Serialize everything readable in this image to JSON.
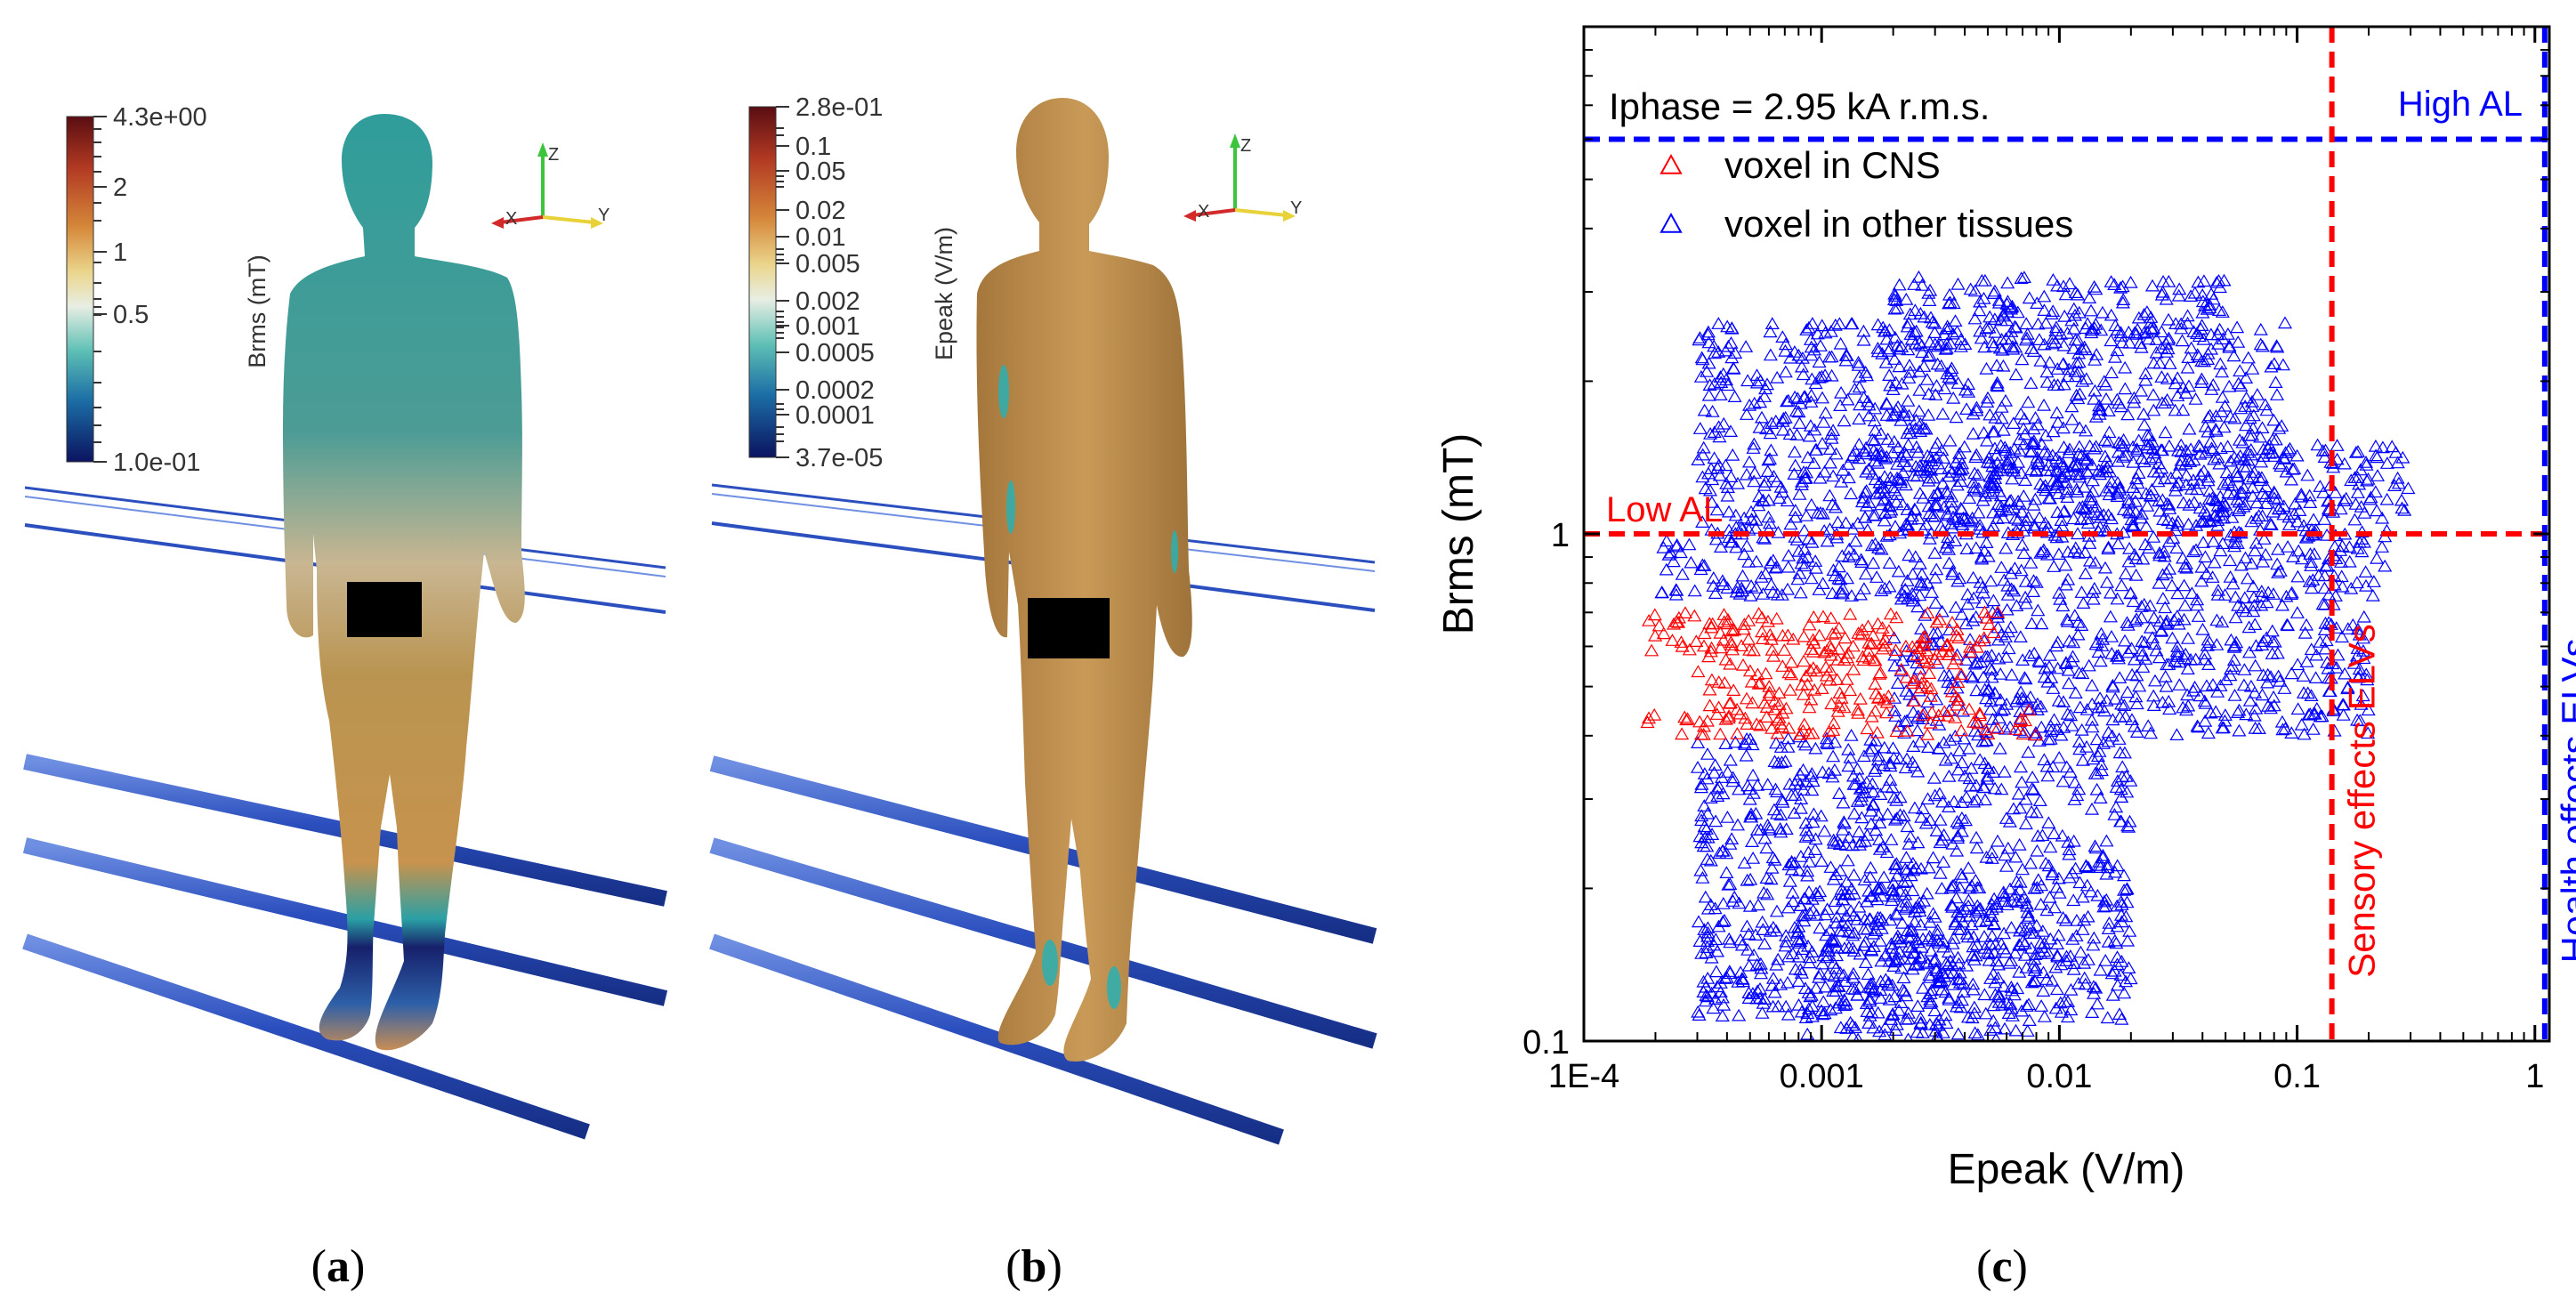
{
  "panels": {
    "a": {
      "label_open": "(",
      "label_letter": "a",
      "label_close": ")",
      "colorbar": {
        "title": "Brms (mT)",
        "ticks": [
          "4.3e+00",
          "2",
          "1",
          "0.5",
          "1.0e-01"
        ]
      },
      "axes": {
        "z": "Z",
        "x": "X",
        "y": "Y"
      }
    },
    "b": {
      "label_open": "(",
      "label_letter": "b",
      "label_close": ")",
      "colorbar": {
        "title": "Epeak (V/m)",
        "ticks": [
          "2.8e-01",
          "0.1",
          "0.05",
          "0.02",
          "0.01",
          "0.005",
          "0.002",
          "0.001",
          "0.0005",
          "0.0002",
          "0.0001",
          "3.7e-05"
        ]
      },
      "axes": {
        "z": "Z",
        "x": "X",
        "y": "Y"
      }
    },
    "c": {
      "label_open": "(",
      "label_letter": "c",
      "label_close": ")"
    }
  },
  "chart_data": {
    "type": "scatter",
    "title": "",
    "xlabel": "Epeak (V/m)",
    "ylabel": "Brms (mT)",
    "xscale": "log",
    "yscale": "log",
    "xlim": [
      0.0001,
      1.15
    ],
    "ylim": [
      0.1,
      10
    ],
    "xticks": [
      0.0001,
      0.001,
      0.01,
      0.1,
      1
    ],
    "xtick_labels": [
      "1E-4",
      "0.001",
      "0.01",
      "0.1",
      "1"
    ],
    "yticks": [
      0.1,
      1
    ],
    "ytick_labels": [
      "0.1",
      "1"
    ],
    "annotation": "Iphase = 2.95 kA r.m.s.",
    "legend": [
      {
        "label": "voxel in CNS",
        "color": "#ff0000",
        "marker": "triangle-open"
      },
      {
        "label": "voxel in other tissues",
        "color": "#0000ff",
        "marker": "triangle-open"
      }
    ],
    "series": [
      {
        "name": "voxel in other tissues",
        "color": "#0000ff",
        "clusters": [
          {
            "x": [
              0.0003,
              0.09
            ],
            "y": [
              1.0,
              2.6
            ]
          },
          {
            "x": [
              0.002,
              0.05
            ],
            "y": [
              2.3,
              3.2
            ]
          },
          {
            "x": [
              0.0002,
              0.25
            ],
            "y": [
              0.75,
              1.0
            ]
          },
          {
            "x": [
              0.0015,
              0.3
            ],
            "y": [
              1.0,
              1.5
            ]
          },
          {
            "x": [
              0.002,
              0.2
            ],
            "y": [
              0.4,
              0.75
            ]
          },
          {
            "x": [
              0.0003,
              0.02
            ],
            "y": [
              0.11,
              0.4
            ]
          },
          {
            "x": [
              0.0008,
              0.008
            ],
            "y": [
              0.1,
              0.2
            ]
          }
        ]
      },
      {
        "name": "voxel in CNS",
        "color": "#ff0000",
        "clusters": [
          {
            "x": [
              0.00018,
              0.006
            ],
            "y": [
              0.58,
              0.7
            ]
          },
          {
            "x": [
              0.00018,
              0.008
            ],
            "y": [
              0.4,
              0.45
            ]
          },
          {
            "x": [
              0.0003,
              0.004
            ],
            "y": [
              0.45,
              0.6
            ]
          }
        ]
      }
    ],
    "reference_lines": [
      {
        "label": "Low AL",
        "orientation": "horizontal",
        "value": 1,
        "color": "#ff0000"
      },
      {
        "label": "High AL",
        "orientation": "horizontal",
        "value": 6,
        "color": "#0000ff"
      },
      {
        "label": "Sensory effects ELVs",
        "orientation": "vertical",
        "value": 0.14,
        "color": "#ff0000"
      },
      {
        "label": "Health effects ELVs",
        "orientation": "vertical",
        "value": 1.1,
        "color": "#0000ff"
      }
    ]
  }
}
